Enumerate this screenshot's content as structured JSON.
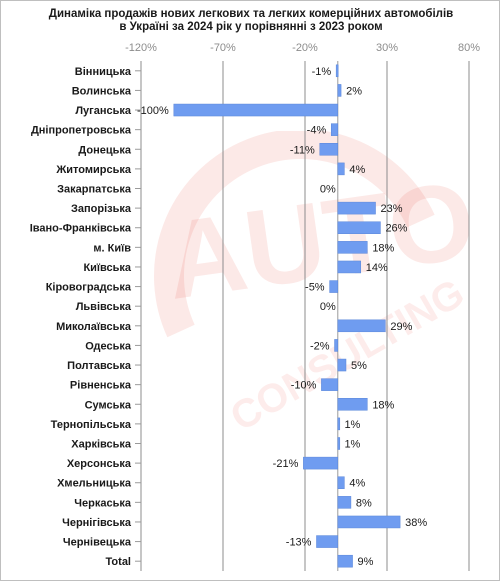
{
  "title_line1": "Динаміка продажів нових легкових та легких комерційних автомобілів",
  "title_line2": "в Україні за 2024 рік у порівнянні з 2023 роком",
  "watermark": {
    "logo": "AUTO",
    "text": "CONSULTING"
  },
  "colors": {
    "bar": "#6f9cf0",
    "bar_light": "#b8cff7",
    "grid": "#8c8c8c",
    "axis_label": "#8c8c8c",
    "watermark": "#e8473c"
  },
  "chart_data": {
    "type": "bar",
    "orientation": "horizontal",
    "title": "Динаміка продажів нових легкових та легких комерційних автомобілів в Україні за 2024 рік у порівнянні з 2023 роком",
    "xlim": [
      -120,
      80
    ],
    "x_ticks": [
      -120,
      -70,
      -20,
      30,
      80
    ],
    "x_tick_labels": [
      "-120%",
      "-70%",
      "-20%",
      "30%",
      "80%"
    ],
    "grid": true,
    "categories": [
      "Вінницька",
      "Волинська",
      "Луганська",
      "Дніпропетровська",
      "Донецька",
      "Житомирська",
      "Закарпатська",
      "Запорізька",
      "Івано-Франківська",
      "м. Київ",
      "Київська",
      "Кіровоградська",
      "Львівська",
      "Миколаївська",
      "Одеська",
      "Полтавська",
      "Рівненська",
      "Сумська",
      "Тернопільська",
      "Харківська",
      "Херсонська",
      "Хмельницька",
      "Черкаська",
      "Чернігівська",
      "Чернівецька",
      "Total"
    ],
    "values": [
      -1,
      2,
      -100,
      -4,
      -11,
      4,
      0,
      23,
      26,
      18,
      14,
      -5,
      0,
      29,
      -2,
      5,
      -10,
      18,
      1,
      1,
      -21,
      4,
      8,
      38,
      -13,
      9
    ],
    "data_labels": [
      "-1%",
      "2%",
      "-100%",
      "-4%",
      "-11%",
      "4%",
      "0%",
      "23%",
      "26%",
      "18%",
      "14%",
      "-5%",
      "0%",
      "29%",
      "-2%",
      "5%",
      "-10%",
      "18%",
      "1%",
      "1%",
      "-21%",
      "4%",
      "8%",
      "38%",
      "-13%",
      "9%"
    ]
  }
}
